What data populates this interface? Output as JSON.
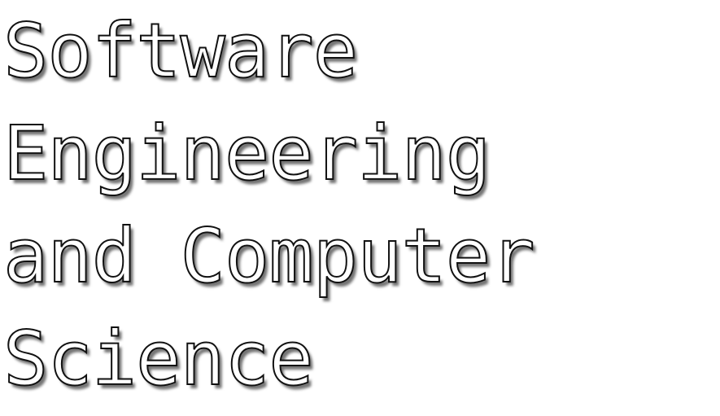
{
  "heading": {
    "lines": [
      "Software",
      "Engineering",
      "and Computer",
      "Science"
    ]
  }
}
